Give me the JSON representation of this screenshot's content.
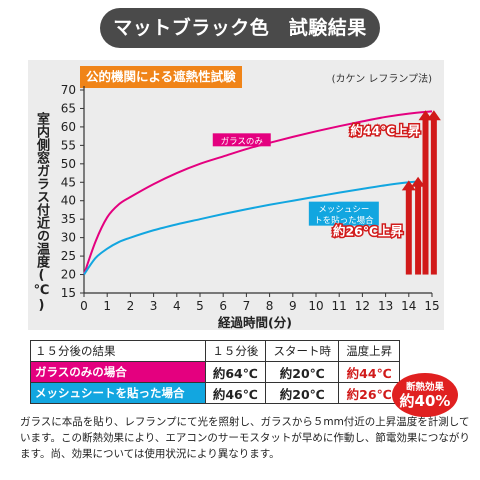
{
  "title": "マットブラック色　試験結果",
  "subtitle": "公的機関による遮熱性試験",
  "method": "(カケン レフランプ法)",
  "chart_data": {
    "type": "line",
    "title": "",
    "xlabel": "経過時間(分)",
    "ylabel": "室内側窓ガラス付近の温度(℃)",
    "xlim": [
      0,
      15
    ],
    "ylim": [
      15,
      70
    ],
    "x_ticks": [
      "0",
      "1",
      "2",
      "3",
      "4",
      "5",
      "6",
      "7",
      "8",
      "9",
      "10",
      "11",
      "12",
      "13",
      "14",
      "15"
    ],
    "y_ticks": [
      "15",
      "20",
      "25",
      "30",
      "35",
      "40",
      "45",
      "50",
      "55",
      "60",
      "65",
      "70"
    ],
    "grid": false,
    "series": [
      {
        "name": "ガラスのみ",
        "color": "#e4007f",
        "x": [
          0,
          0.5,
          1,
          1.5,
          2,
          3,
          4,
          5,
          6,
          7,
          8,
          9,
          10,
          11,
          12,
          13,
          14,
          15
        ],
        "y": [
          20,
          29,
          35.5,
          39,
          41,
          44.5,
          47.5,
          50,
          52,
          54,
          55.7,
          57.3,
          58.8,
          60.2,
          61.5,
          62.7,
          63.6,
          64.2
        ]
      },
      {
        "name": "メッシュシートを貼った場合",
        "color": "#12a6e0",
        "x": [
          0,
          0.5,
          1,
          1.5,
          2,
          3,
          4,
          5,
          6,
          7,
          8,
          9,
          10,
          11,
          12,
          13,
          14,
          14.5
        ],
        "y": [
          20,
          24.5,
          27,
          28.8,
          30,
          32,
          33.6,
          35,
          36.4,
          37.7,
          38.9,
          40,
          41.1,
          42.2,
          43.2,
          44.2,
          45,
          45.3
        ]
      }
    ],
    "annotations": [
      {
        "text": "約44℃上昇",
        "from": 20,
        "to": 64
      },
      {
        "text": "約26℃上昇",
        "from": 20,
        "to": 46
      }
    ]
  },
  "table": {
    "headers": [
      "１５分後の結果",
      "１５分後",
      "スタート時",
      "温度上昇"
    ],
    "rows": [
      {
        "label": "ガラスのみの場合",
        "after": "約64℃",
        "start": "約20℃",
        "rise": "約44℃"
      },
      {
        "label": "メッシュシートを貼った場合",
        "after": "約46℃",
        "start": "約20℃",
        "rise": "約26℃"
      }
    ]
  },
  "effect_badge": {
    "line1": "断熱効果",
    "line2": "約40%"
  },
  "footnote": "ガラスに本品を貼り、レフランプにて光を照射し、ガラスから５mm付近の上昇温度を計測しています。この断熱効果により、エアコンのサーモスタットが早めに作動し、節電効果につながります。尚、効果については使用状況により異なります。",
  "colors": {
    "glass": "#e4007f",
    "mesh": "#12a6e0",
    "arrow": "#d11a1a",
    "panel": "#ececec",
    "badge": "#f08418"
  }
}
